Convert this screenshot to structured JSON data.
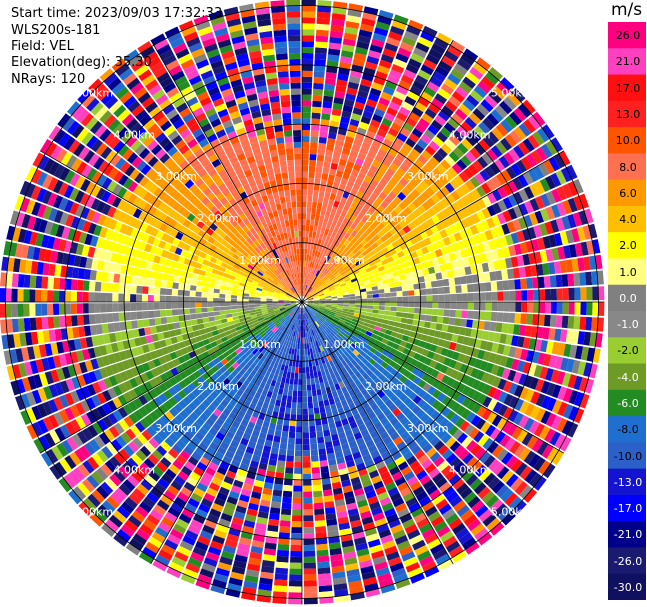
{
  "header": {
    "start_time_label": "Start time:",
    "start_time": "2023/09/03 17:32:33",
    "site": "WLS200s-181",
    "field_label": "Field:",
    "field": "VEL",
    "elevation_label": "Elevation(deg):",
    "elevation": "35.30",
    "nrays_label": "NRays:",
    "nrays": "120"
  },
  "chart_data": {
    "type": "heatmap",
    "projection": "polar-ppi",
    "units": "m/s",
    "nrays": 120,
    "range_max_km": 5.1,
    "range_rings_km": [
      1.0,
      2.0,
      3.0,
      4.0,
      5.0
    ],
    "range_ring_labels": [
      "1.00km",
      "2.00km",
      "3.00km",
      "4.00km",
      "5.00km"
    ],
    "grid": true,
    "colorbar": {
      "position": "right",
      "unit_label": "m/s",
      "ticks": [
        "26.0",
        "21.0",
        "17.0",
        "13.0",
        "10.0",
        "8.0",
        "6.0",
        "4.0",
        "2.0",
        "1.0",
        "0.0",
        "-1.0",
        "-2.0",
        "-4.0",
        "-6.0",
        "-8.0",
        "-10.0",
        "-13.0",
        "-17.0",
        "-21.0",
        "-26.0",
        "-30.0"
      ],
      "colors": [
        "#ff0080",
        "#ff40c0",
        "#ff1010",
        "#ff2020",
        "#ff5500",
        "#ff7050",
        "#ff9900",
        "#ffbf00",
        "#ffff00",
        "#ffff80",
        "#808080",
        "#888888",
        "#9acd32",
        "#6e9a26",
        "#228b22",
        "#1e6fd0",
        "#2a60c8",
        "#1414d0",
        "#0000ff",
        "#00008b",
        "#1a1a70",
        "#101060"
      ]
    },
    "velocity_field_description": {
      "near_range_km": 3.0,
      "north_sector_value": 10.0,
      "north_east_value": 4.0,
      "east_value": 0.0,
      "south_east_value": -4.0,
      "south_value": -10.0,
      "south_west_value": -6.0,
      "west_value": 1.0,
      "north_west_value": 6.0
    }
  }
}
